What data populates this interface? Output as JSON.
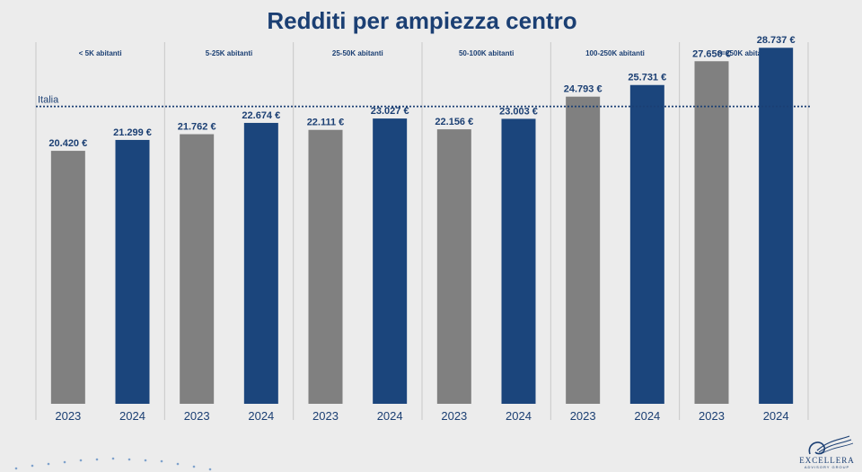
{
  "title": "Redditi per ampiezza centro",
  "chart_data": {
    "type": "bar",
    "title": "Redditi per ampiezza centro",
    "groups": [
      "< 5K abitanti",
      "5-25K abitanti",
      "25-50K abitanti",
      "50-100K abitanti",
      "100-250K abitanti",
      ">=250K abitanti"
    ],
    "x_labels": [
      "2023",
      "2024"
    ],
    "series": [
      {
        "values": [
          20420,
          21762,
          22111,
          22156,
          24793,
          27650
        ],
        "labels": [
          "20.420 €",
          "21.762 €",
          "22.111 €",
          "22.156 €",
          "24.793 €",
          "27.650 €"
        ],
        "color": "#808080"
      },
      {
        "values": [
          21299,
          22674,
          23027,
          23003,
          25731,
          28737
        ],
        "labels": [
          "21.299 €",
          "22.674 €",
          "23.027 €",
          "23.003 €",
          "25.731 €",
          "28.737 €"
        ],
        "color": "#1b457c"
      }
    ],
    "reference_line": {
      "label": "Italia",
      "value": 24000,
      "style": "dotted"
    },
    "ylim": [
      0,
      31000
    ],
    "grid": false,
    "legend": "none"
  },
  "logo": {
    "name": "EXCELLERA",
    "tagline": "ADVISORY GROUP"
  },
  "colors": {
    "accent": "#1b3f73",
    "bar_2023": "#808080",
    "bar_2024": "#1b457c",
    "background": "#ececec"
  }
}
